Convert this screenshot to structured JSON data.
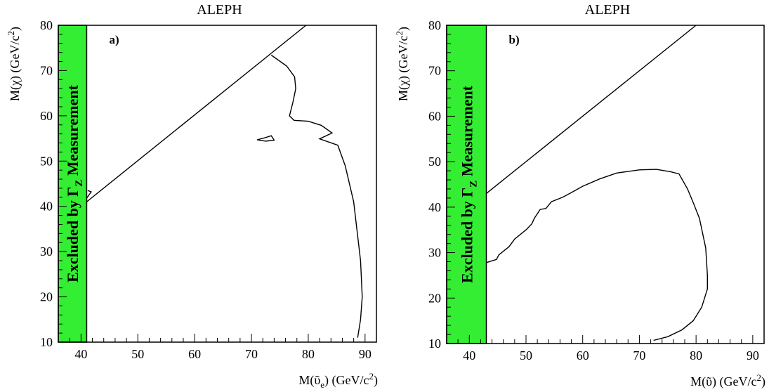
{
  "chart_data": [
    {
      "type": "line",
      "title": "ALEPH",
      "panel_label": "a)",
      "xlabel": "M(ῦ_e) (GeV/c²)",
      "xlabel_parts": {
        "pre": "M(",
        "sym": "ῦ",
        "sub": "e",
        "post": ") (GeV/c",
        "sup": "2",
        "end": ")"
      },
      "ylabel_parts": {
        "pre": "M(",
        "sym": "χ",
        "post": ") (GeV/c",
        "sup": "2",
        "end": ")"
      },
      "xlim": [
        36,
        92
      ],
      "ylim": [
        10,
        80
      ],
      "xticks": [
        40,
        50,
        60,
        70,
        80,
        90
      ],
      "yticks": [
        10,
        20,
        30,
        40,
        50,
        60,
        70,
        80
      ],
      "excluded_band": {
        "x_max": 41,
        "color": "#33ee33",
        "label_pre": "Excluded by Γ",
        "label_sub": "Z",
        "label_post": " Measurement"
      },
      "series": [
        {
          "points": [
            [
              41,
              41
            ],
            [
              79.6,
              80
            ]
          ]
        },
        {
          "points": [
            [
              41,
              41.8
            ],
            [
              41.8,
              43.2
            ],
            [
              41.2,
              43.5
            ]
          ]
        },
        {
          "points": [
            [
              73.5,
              73.4
            ],
            [
              76.2,
              71
            ],
            [
              77.6,
              68.6
            ],
            [
              77.8,
              66
            ],
            [
              77.3,
              63
            ],
            [
              76.7,
              60
            ],
            [
              77.5,
              59
            ],
            [
              80,
              58.8
            ],
            [
              82.3,
              57.9
            ],
            [
              84.2,
              56.2
            ],
            [
              82,
              54.9
            ],
            [
              85.2,
              53.5
            ],
            [
              86.5,
              49
            ],
            [
              88,
              41
            ],
            [
              89.2,
              28
            ],
            [
              89.5,
              20
            ],
            [
              89.2,
              15
            ],
            [
              88.7,
              11
            ]
          ]
        },
        {
          "points": [
            [
              71,
              54.7
            ],
            [
              72.5,
              55.2
            ],
            [
              73.5,
              55.6
            ],
            [
              74,
              54.6
            ],
            [
              72.5,
              54.4
            ],
            [
              71,
              54.7
            ]
          ]
        }
      ]
    },
    {
      "type": "line",
      "title": "ALEPH",
      "panel_label": "b)",
      "xlabel": "M(ῦ) (GeV/c²)",
      "xlabel_parts": {
        "pre": "M(",
        "sym": "ῦ",
        "sub": "",
        "post": ") (GeV/c",
        "sup": "2",
        "end": ")"
      },
      "ylabel_parts": {
        "pre": "M(",
        "sym": "χ",
        "post": ") (GeV/c",
        "sup": "2",
        "end": ")"
      },
      "xlim": [
        36,
        92
      ],
      "ylim": [
        10,
        80
      ],
      "xticks": [
        40,
        50,
        60,
        70,
        80,
        90
      ],
      "yticks": [
        10,
        20,
        30,
        40,
        50,
        60,
        70,
        80
      ],
      "excluded_band": {
        "x_max": 43,
        "color": "#33ee33",
        "label_pre": "Excluded by Γ",
        "label_sub": "Z",
        "label_post": " Measurement"
      },
      "series": [
        {
          "points": [
            [
              43,
              43
            ],
            [
              80,
              80
            ]
          ]
        },
        {
          "points": [
            [
              43,
              27.8
            ],
            [
              44.8,
              28.5
            ],
            [
              45.2,
              29.5
            ],
            [
              47,
              31.3
            ],
            [
              48,
              33
            ],
            [
              50,
              35
            ],
            [
              51,
              36.3
            ],
            [
              51.5,
              37.6
            ],
            [
              52.5,
              39.5
            ],
            [
              53.5,
              39.7
            ],
            [
              54.5,
              41.2
            ],
            [
              56.5,
              42.2
            ],
            [
              58,
              43.2
            ],
            [
              60,
              44.6
            ],
            [
              63,
              46.2
            ],
            [
              66,
              47.5
            ],
            [
              70,
              48.2
            ],
            [
              73,
              48.3
            ],
            [
              75.5,
              47.8
            ],
            [
              77,
              47.3
            ],
            [
              78.5,
              44
            ],
            [
              79.5,
              41
            ],
            [
              80.6,
              37.5
            ],
            [
              81.7,
              31
            ],
            [
              82,
              25
            ],
            [
              82,
              22
            ],
            [
              81,
              18
            ],
            [
              79.5,
              15
            ],
            [
              77.5,
              13
            ],
            [
              75,
              11.5
            ],
            [
              72.5,
              10.7
            ]
          ]
        }
      ]
    }
  ]
}
